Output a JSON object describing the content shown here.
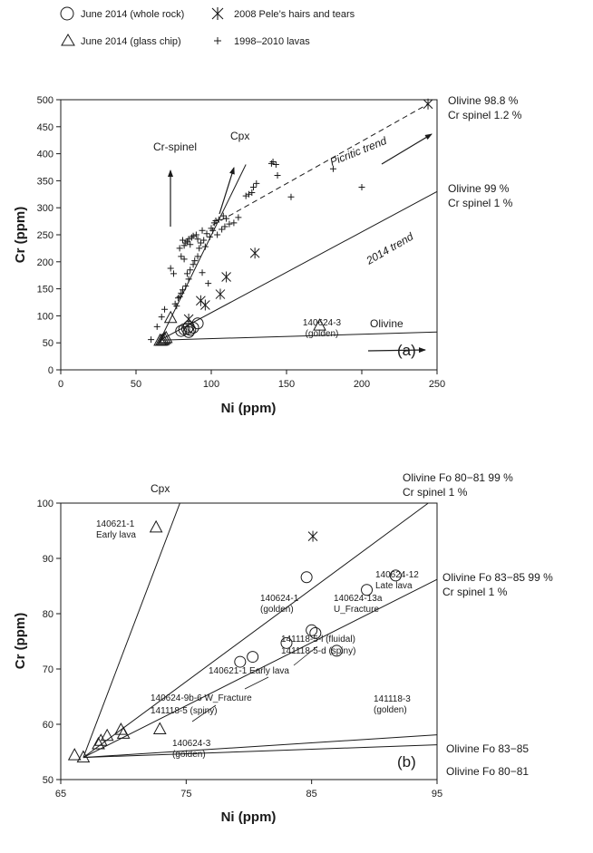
{
  "legend": {
    "whole_rock": "June 2014 (whole rock)",
    "glass_chip": "June 2014 (glass chip)",
    "pele": "2008 Pele’s hairs and tears",
    "lavas": "1998–2010 lavas"
  },
  "chart_data": [
    {
      "type": "scatter",
      "panel_label": "(a)",
      "xlabel": "Ni (ppm)",
      "ylabel": "Cr (ppm)",
      "xlim": [
        0,
        250
      ],
      "ylim": [
        0,
        500
      ],
      "xticks": [
        "0",
        "50",
        "100",
        "150",
        "200",
        "250"
      ],
      "yticks": [
        "0",
        "50",
        "100",
        "150",
        "200",
        "250",
        "300",
        "350",
        "400",
        "450",
        "500"
      ],
      "series": [
        {
          "name": "June 2014 (whole rock)",
          "marker": "circle",
          "points": [
            [
              80,
              72
            ],
            [
              84,
              76
            ],
            [
              85,
              80
            ],
            [
              86,
              74
            ],
            [
              88,
              78
            ],
            [
              91,
              86
            ],
            [
              85,
              70
            ],
            [
              82,
              75
            ]
          ]
        },
        {
          "name": "June 2014 (glass chip)",
          "marker": "triangle",
          "points": [
            [
              66,
              54
            ],
            [
              67,
              54
            ],
            [
              68,
              55
            ],
            [
              69,
              57
            ],
            [
              70,
              59
            ],
            [
              73,
              96
            ],
            [
              172,
              82
            ]
          ]
        },
        {
          "name": "2008 Pele’s hairs and tears",
          "marker": "asterisk",
          "points": [
            [
              85,
              94
            ],
            [
              93,
              128
            ],
            [
              96,
              120
            ],
            [
              106,
              140
            ],
            [
              110,
              172
            ],
            [
              129,
              216
            ],
            [
              244,
              492
            ]
          ]
        },
        {
          "name": "1998–2010 lavas",
          "marker": "plus",
          "points": [
            [
              60,
              56
            ],
            [
              64,
              80
            ],
            [
              67,
              98
            ],
            [
              69,
              112
            ],
            [
              73,
              188
            ],
            [
              75,
              178
            ],
            [
              76,
              122
            ],
            [
              77,
              118
            ],
            [
              78,
              133
            ],
            [
              79,
              135
            ],
            [
              79,
              225
            ],
            [
              80,
              142
            ],
            [
              80,
              210
            ],
            [
              81,
              148
            ],
            [
              81,
              240
            ],
            [
              82,
              230
            ],
            [
              82,
              205
            ],
            [
              83,
              155
            ],
            [
              83,
              235
            ],
            [
              84,
              178
            ],
            [
              84,
              238
            ],
            [
              85,
              168
            ],
            [
              85,
              242
            ],
            [
              86,
              185
            ],
            [
              86,
              232
            ],
            [
              87,
              245
            ],
            [
              88,
              195
            ],
            [
              88,
              248
            ],
            [
              89,
              202
            ],
            [
              90,
              250
            ],
            [
              91,
              210
            ],
            [
              91,
              242
            ],
            [
              92,
              225
            ],
            [
              93,
              235
            ],
            [
              94,
              180
            ],
            [
              94,
              258
            ],
            [
              95,
              240
            ],
            [
              96,
              228
            ],
            [
              97,
              252
            ],
            [
              98,
              160
            ],
            [
              99,
              246
            ],
            [
              100,
              262
            ],
            [
              101,
              258
            ],
            [
              102,
              272
            ],
            [
              103,
              276
            ],
            [
              104,
              250
            ],
            [
              105,
              278
            ],
            [
              107,
              260
            ],
            [
              108,
              285
            ],
            [
              109,
              265
            ],
            [
              110,
              280
            ],
            [
              112,
              270
            ],
            [
              115,
              272
            ],
            [
              118,
              282
            ],
            [
              123,
              322
            ],
            [
              125,
              325
            ],
            [
              127,
              328
            ],
            [
              128,
              338
            ],
            [
              130,
              345
            ],
            [
              140,
              382
            ],
            [
              141,
              385
            ],
            [
              143,
              380
            ],
            [
              144,
              360
            ],
            [
              153,
              320
            ],
            [
              181,
              372
            ],
            [
              200,
              338
            ]
          ]
        }
      ],
      "annotations": {
        "picritic": "Picritic trend",
        "trend2014": "2014 trend",
        "crspinel": "Cr-spinel",
        "cpx": "Cpx",
        "olivine": "Olivine",
        "sample": "140624-3",
        "sample_sub": "(golden)",
        "ol_988": "Olivine 98.8 %",
        "sp_12": "Cr spinel 1.2 %",
        "ol_99": "Olivine 99 %",
        "sp_1": "Cr spinel 1 %"
      }
    },
    {
      "type": "scatter",
      "panel_label": "(b)",
      "xlabel": "Ni (ppm)",
      "ylabel": "Cr (ppm)",
      "xlim": [
        65,
        95
      ],
      "ylim": [
        50,
        100
      ],
      "xticks": [
        "65",
        "75",
        "85",
        "95"
      ],
      "yticks": [
        "50",
        "60",
        "70",
        "80",
        "90",
        "100"
      ],
      "series": [
        {
          "name": "June 2014 (whole rock)",
          "marker": "circle",
          "points": [
            [
              79.3,
              71.3
            ],
            [
              80.3,
              72.2
            ],
            [
              83.0,
              74.7
            ],
            [
              84.6,
              86.6
            ],
            [
              85.0,
              77.0
            ],
            [
              85.3,
              76.5
            ],
            [
              87.0,
              73.3
            ],
            [
              89.4,
              84.3
            ],
            [
              91.7,
              86.9
            ]
          ]
        },
        {
          "name": "June 2014 (glass chip)",
          "marker": "triangle",
          "points": [
            [
              66.1,
              54.4
            ],
            [
              66.8,
              54.0
            ],
            [
              68.0,
              56.4
            ],
            [
              68.2,
              57.0
            ],
            [
              68.7,
              57.9
            ],
            [
              69.8,
              59.0
            ],
            [
              70.0,
              58.3
            ],
            [
              72.9,
              59.1
            ],
            [
              72.6,
              95.6
            ]
          ]
        },
        {
          "name": "2008 Pele’s hairs and tears",
          "marker": "asterisk",
          "points": [
            [
              85.1,
              94.0
            ]
          ]
        }
      ],
      "annotations": {
        "cpx": "Cpx",
        "ol_8081_99": "Olivine Fo 80−81  99 %",
        "sp1_a": "Cr spinel 1 %",
        "ol_8385_99": "Olivine Fo 83−85  99 %",
        "sp1_b": "Cr spinel 1 %",
        "ol_8385": "Olivine Fo 83−85",
        "ol_8081": "Olivine Fo 80−81",
        "s1": "140621-1",
        "s1b": "Early lava",
        "s2": "140624-1",
        "s2b": "(golden)",
        "s3": "140624-13a",
        "s3b": "U_Fracture",
        "s4": "140624-12",
        "s4b": "Late lava",
        "s5": "141118-5-l (fluidal)",
        "s6": "141118-5-d (spiny)",
        "s7": "140621-1 Early lava",
        "s8": "140624-9b-6 W_Fracture",
        "s9": "141118-5 (spiny)",
        "s10": "141118-3",
        "s10b": "(golden)",
        "s11": "140624-3",
        "s11b": "(golden)"
      }
    }
  ]
}
